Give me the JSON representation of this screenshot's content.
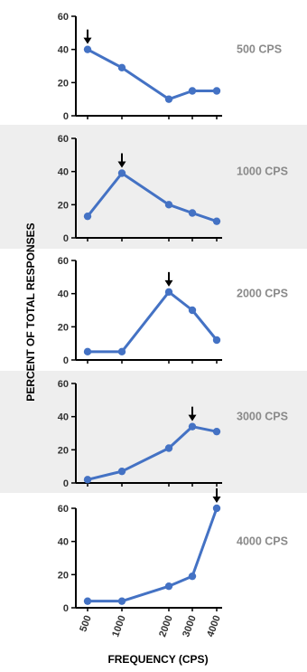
{
  "colors": {
    "series": "#4472C4",
    "band": "#eeeeee",
    "panel_label": "#8a8a8a",
    "arrow": "#000000"
  },
  "figure": {
    "ylabel": "PERCENT OF TOTAL RESPONSES",
    "xlabel": "FREQUENCY (CPS)"
  },
  "chart_data": [
    {
      "type": "line",
      "title": "500 CPS",
      "x": [
        500,
        1000,
        2000,
        3000,
        4000
      ],
      "y": [
        40,
        29,
        10,
        15,
        15
      ],
      "arrow_at": 500,
      "ylim": [
        0,
        60
      ],
      "yticks": [
        0,
        20,
        40,
        60
      ],
      "shaded": false
    },
    {
      "type": "line",
      "title": "1000 CPS",
      "x": [
        500,
        1000,
        2000,
        3000,
        4000
      ],
      "y": [
        13,
        39,
        20,
        15,
        10
      ],
      "arrow_at": 1000,
      "ylim": [
        0,
        60
      ],
      "yticks": [
        0,
        20,
        40,
        60
      ],
      "shaded": true
    },
    {
      "type": "line",
      "title": "2000 CPS",
      "x": [
        500,
        1000,
        2000,
        3000,
        4000
      ],
      "y": [
        5,
        5,
        41,
        30,
        12
      ],
      "arrow_at": 2000,
      "ylim": [
        0,
        60
      ],
      "yticks": [
        0,
        20,
        40,
        60
      ],
      "shaded": false
    },
    {
      "type": "line",
      "title": "3000 CPS",
      "x": [
        500,
        1000,
        2000,
        3000,
        4000
      ],
      "y": [
        2,
        7,
        21,
        34,
        31
      ],
      "arrow_at": 3000,
      "ylim": [
        0,
        60
      ],
      "yticks": [
        0,
        20,
        40,
        60
      ],
      "shaded": true
    },
    {
      "type": "line",
      "title": "4000 CPS",
      "x": [
        500,
        1000,
        2000,
        3000,
        4000
      ],
      "y": [
        4,
        4,
        13,
        19,
        60
      ],
      "arrow_at": 4000,
      "ylim": [
        0,
        60
      ],
      "yticks": [
        0,
        20,
        40,
        60
      ],
      "xtick_labels": [
        "500",
        "1000",
        "2000",
        "3000",
        "4000"
      ],
      "xlabel": "FREQUENCY (CPS)",
      "shaded": false
    }
  ]
}
